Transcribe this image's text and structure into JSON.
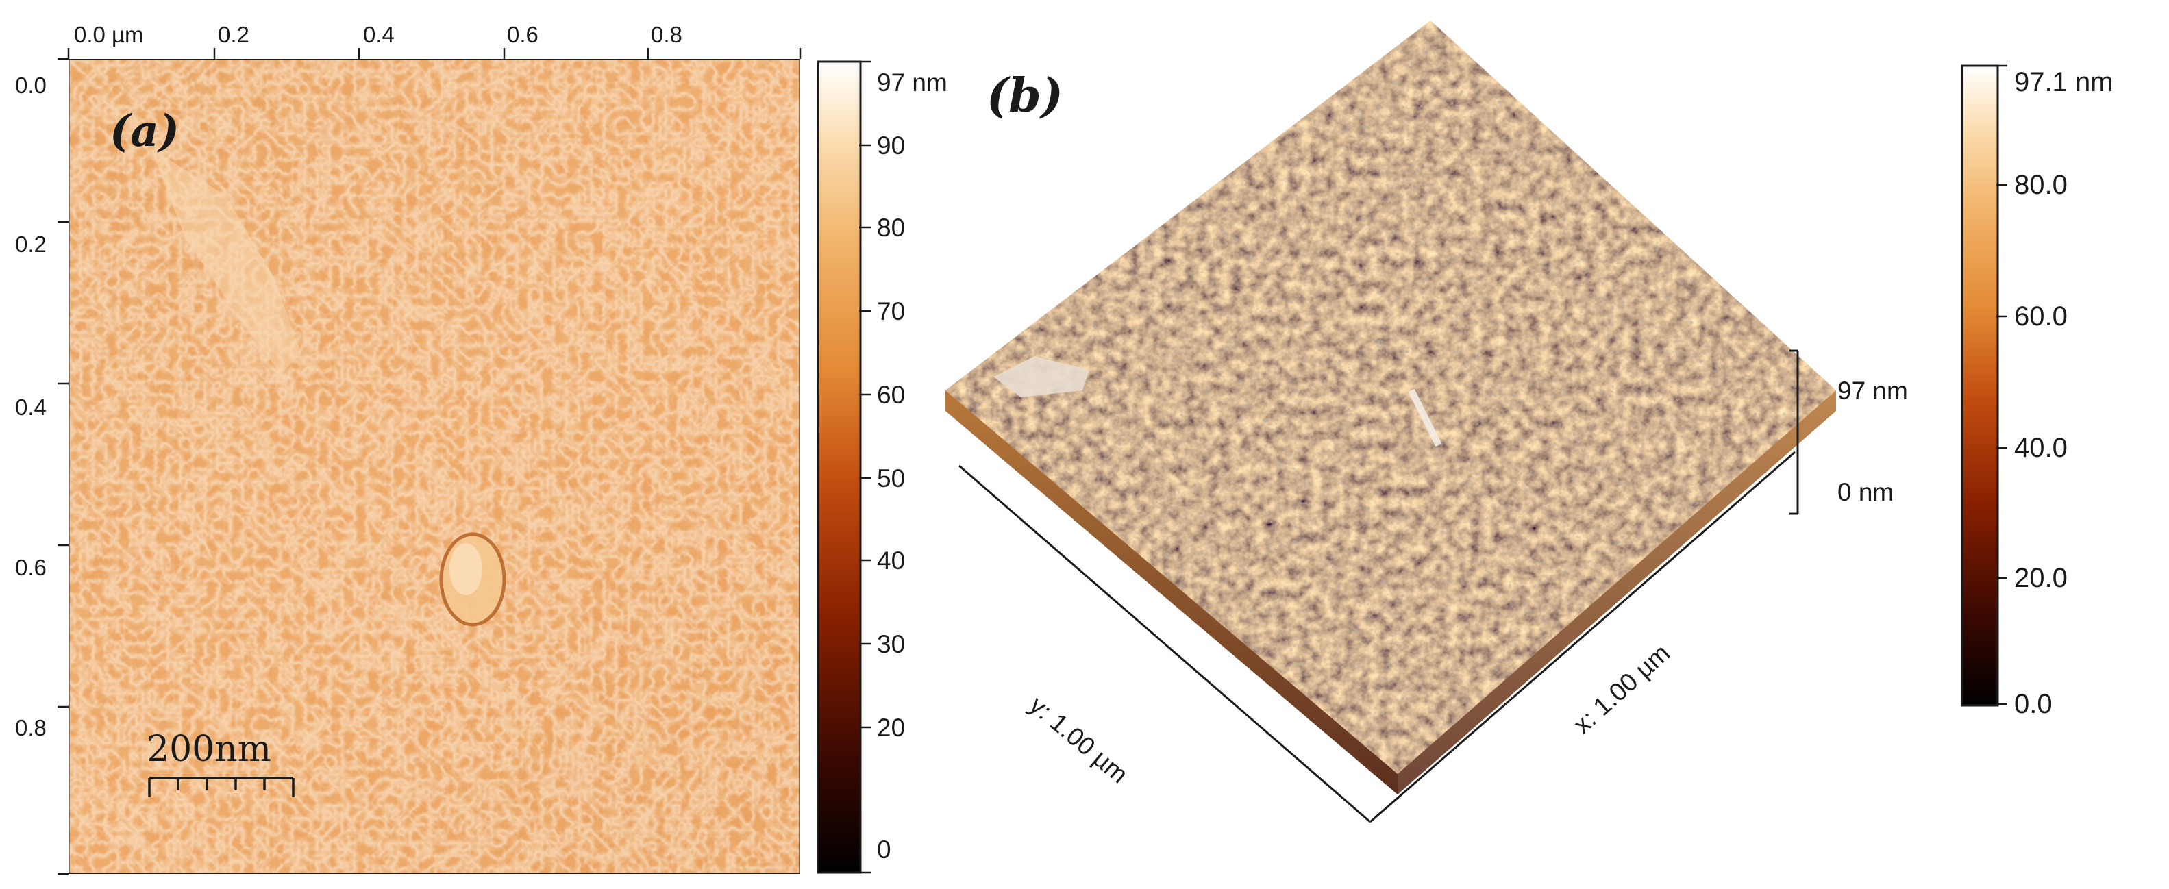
{
  "panel_a": {
    "label": "(a)",
    "x_ticks": [
      "0.0 µm",
      "0.2",
      "0.4",
      "0.6",
      "0.8"
    ],
    "y_ticks": [
      "0.0",
      "0.2",
      "0.4",
      "0.6",
      "0.8"
    ],
    "scale_bar": "200nm",
    "colorbar": {
      "top_label": "97 nm",
      "ticks": [
        "90",
        "80",
        "70",
        "60",
        "50",
        "40",
        "30",
        "20",
        "0"
      ]
    }
  },
  "panel_b": {
    "label": "(b)",
    "x_axis": "x: 1.00 µm",
    "y_axis": "y: 1.00 µm",
    "z_top": "97 nm",
    "z_bottom": "0 nm",
    "colorbar": {
      "top_label": "97.1 nm",
      "ticks": [
        "80.0",
        "60.0",
        "40.0",
        "20.0",
        "0.0"
      ]
    }
  },
  "colormap": [
    "#000000",
    "#3a0800",
    "#8a2100",
    "#c24d10",
    "#e38a35",
    "#f2b56c",
    "#fbdcae",
    "#ffffff"
  ]
}
